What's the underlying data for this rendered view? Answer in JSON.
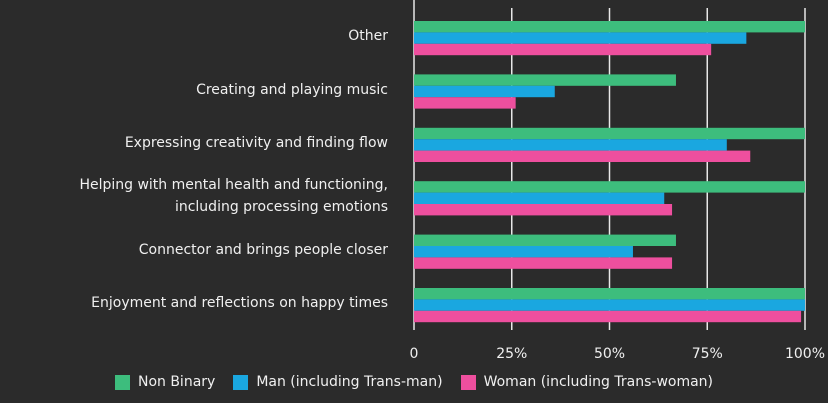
{
  "chart_data": {
    "type": "bar",
    "orientation": "horizontal",
    "categories": [
      "Other",
      "Creating and playing music",
      "Expressing creativity and finding flow",
      "Helping with mental health and functioning,\nincluding processing emotions",
      "Connector and brings people closer",
      "Enjoyment and reflections on happy times"
    ],
    "series": [
      {
        "name": "Non Binary",
        "color": "#3dbd7d",
        "values": [
          100,
          67,
          100,
          100,
          67,
          100
        ]
      },
      {
        "name": "Man (including Trans-man)",
        "color": "#1aa7e0",
        "values": [
          85,
          36,
          80,
          64,
          56,
          100
        ]
      },
      {
        "name": "Woman (including Trans-woman)",
        "color": "#ee4f9e",
        "values": [
          76,
          26,
          86,
          66,
          66,
          99
        ]
      }
    ],
    "xlim": [
      0,
      100
    ],
    "xticks": [
      0,
      {
        "value": 25,
        "label": "25%"
      },
      {
        "value": 50,
        "label": "50%"
      },
      {
        "value": 75,
        "label": "75%"
      },
      {
        "value": 100,
        "label": "100%"
      }
    ],
    "grid": true
  }
}
